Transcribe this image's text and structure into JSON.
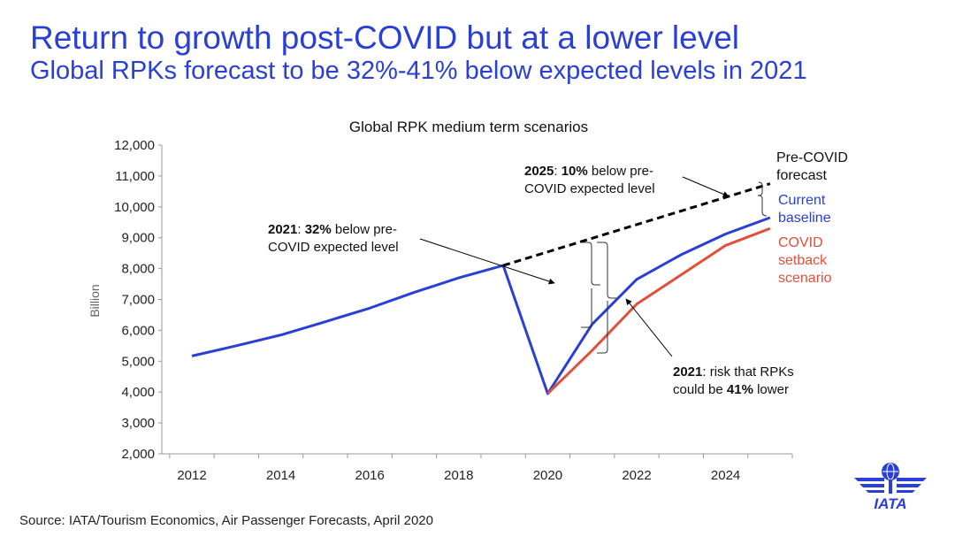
{
  "header": {
    "title": "Return to growth post-COVID but at a lower level",
    "subtitle": "Global RPKs forecast to be 32%-41% below expected levels in 2021"
  },
  "chart_data": {
    "type": "line",
    "title": "Global RPK medium term scenarios",
    "xlabel": "",
    "ylabel": "Billion",
    "ylim": [
      2000,
      12000
    ],
    "xlim": [
      2011.6,
      2025.6
    ],
    "yticks": [
      2000,
      3000,
      4000,
      5000,
      6000,
      7000,
      8000,
      9000,
      10000,
      11000,
      12000
    ],
    "ytick_labels": [
      "2,000",
      "3,000",
      "4,000",
      "5,000",
      "6,000",
      "7,000",
      "8,000",
      "9,000",
      "10,000",
      "11,000",
      "12,000"
    ],
    "xticks": [
      2012,
      2014,
      2016,
      2018,
      2020,
      2022,
      2024
    ],
    "xtick_labels": [
      "2012",
      "2014",
      "2016",
      "2018",
      "2020",
      "2022",
      "2024"
    ],
    "grid": false,
    "series": [
      {
        "name": "Current baseline",
        "color": "#2a3fd6",
        "style": "solid",
        "x": [
          2012,
          2013,
          2014,
          2015,
          2016,
          2017,
          2018,
          2019,
          2020,
          2021,
          2022,
          2023,
          2024,
          2025
        ],
        "values": [
          5170,
          5500,
          5850,
          6280,
          6720,
          7230,
          7700,
          8100,
          3950,
          6200,
          7650,
          8450,
          9120,
          9650
        ]
      },
      {
        "name": "COVID setback scenario",
        "color": "#e0503a",
        "style": "solid",
        "x": [
          2020,
          2021,
          2022,
          2023,
          2024,
          2025
        ],
        "values": [
          3950,
          5350,
          6850,
          7800,
          8750,
          9300
        ]
      },
      {
        "name": "Pre-COVID forecast",
        "color": "#000000",
        "style": "dashed",
        "x": [
          2019,
          2025
        ],
        "values": [
          8100,
          10750
        ]
      }
    ],
    "legend_labels": [
      {
        "lines": [
          "Pre-COVID",
          "forecast"
        ],
        "color": "#000000"
      },
      {
        "lines": [
          "Current",
          "baseline"
        ],
        "color": "#2a3fd6"
      },
      {
        "lines": [
          "COVID",
          "setback",
          "scenario"
        ],
        "color": "#e0503a"
      }
    ],
    "annotations": {
      "a2025": {
        "bold1": "2025",
        "t1": ": ",
        "bold2": "10%",
        "t2": " below pre-",
        "line2": "COVID expected level"
      },
      "a2021": {
        "bold1": "2021",
        "t1": ": ",
        "bold2": "32%",
        "t2": " below pre-",
        "line2": "COVID expected level"
      },
      "arisk": {
        "bold1": "2021",
        "t1": ": risk that RPKs",
        "line2a": "could be ",
        "bold2": "41%",
        "line2b": " lower"
      }
    }
  },
  "footer": {
    "source": "Source: IATA/Tourism Economics, Air Passenger Forecasts, April 2020",
    "logo_text": "IATA"
  }
}
